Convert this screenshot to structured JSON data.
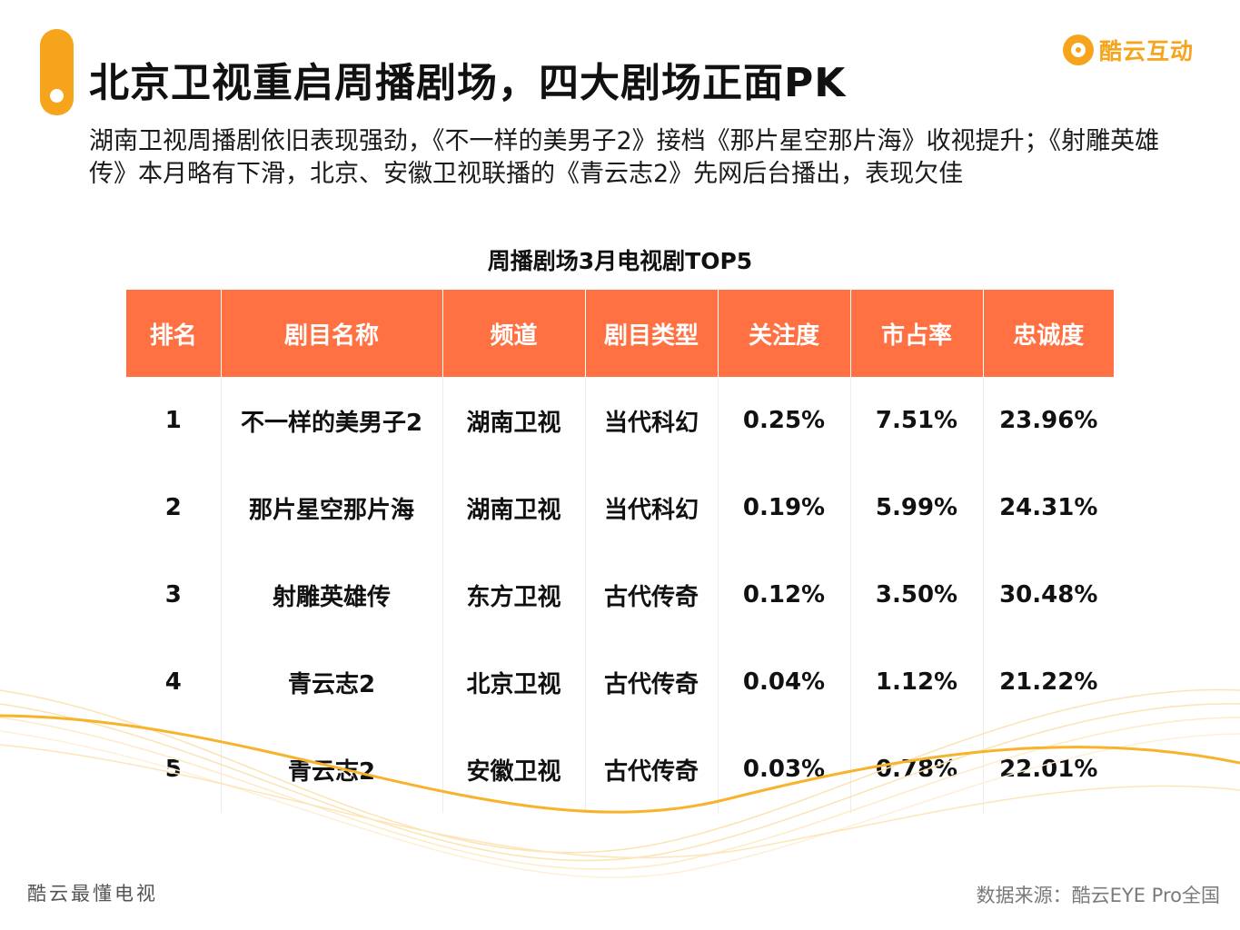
{
  "header": {
    "title": "北京卫视重启周播剧场，四大剧场正面PK",
    "logo_text": "酷云互动",
    "subtitle": "湖南卫视周播剧依旧表现强劲，《不一样的美男子2》接档《那片星空那片海》收视提升；《射雕英雄传》本月略有下滑，北京、安徽卫视联播的《青云志2》先网后台播出，表现欠佳"
  },
  "table": {
    "title": "周播剧场3月电视剧TOP5",
    "columns": [
      "排名",
      "剧目名称",
      "频道",
      "剧目类型",
      "关注度",
      "市占率",
      "忠诚度"
    ],
    "rows": [
      [
        "1",
        "不一样的美男子2",
        "湖南卫视",
        "当代科幻",
        "0.25%",
        "7.51%",
        "23.96%"
      ],
      [
        "2",
        "那片星空那片海",
        "湖南卫视",
        "当代科幻",
        "0.19%",
        "5.99%",
        "24.31%"
      ],
      [
        "3",
        "射雕英雄传",
        "东方卫视",
        "古代传奇",
        "0.12%",
        "3.50%",
        "30.48%"
      ],
      [
        "4",
        "青云志2",
        "北京卫视",
        "古代传奇",
        "0.04%",
        "1.12%",
        "21.22%"
      ],
      [
        "5",
        "青云志2",
        "安徽卫视",
        "古代传奇",
        "0.03%",
        "0.78%",
        "22.01%"
      ]
    ]
  },
  "footer": {
    "slogan": "酷云最懂电视",
    "source": "数据来源：酷云EYE Pro全国"
  },
  "colors": {
    "accent": "#f7a41d",
    "table_header": "#ff7142"
  }
}
